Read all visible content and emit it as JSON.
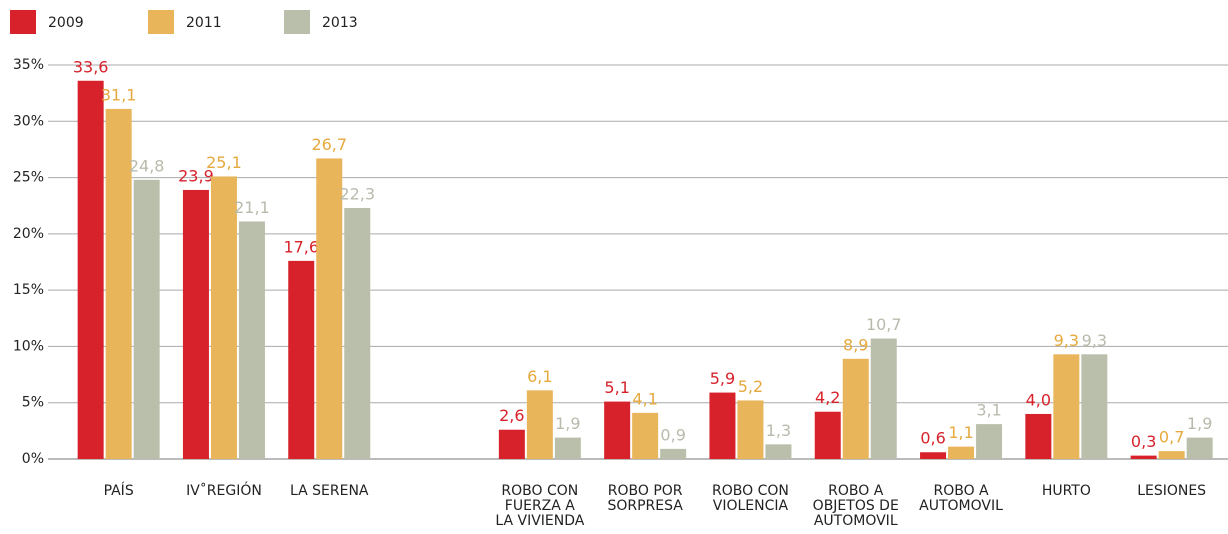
{
  "chart_data": {
    "type": "bar",
    "categories": [
      "PAÍS",
      "IV˚REGIÓN",
      "LA SERENA",
      null,
      "ROBO CON\nFUERZA A\nLA VIVIENDA",
      "ROBO POR\nSORPRESA",
      "ROBO CON\nVIOLENCIA",
      "ROBO A\nOBJETOS DE\nAUTOMOVIL",
      "ROBO A\nAUTOMOVIL",
      "HURTO",
      "LESIONES"
    ],
    "series": [
      {
        "name": "2009",
        "color": "#d7222b",
        "label_color": "#d7222b",
        "values": [
          33.6,
          23.9,
          17.6,
          null,
          2.6,
          5.1,
          5.9,
          4.2,
          0.6,
          4.0,
          0.3
        ],
        "value_labels": [
          "33,6",
          "23,9",
          "17,6",
          null,
          "2,6",
          "5,1",
          "5,9",
          "4,2",
          "0,6",
          "4,0",
          "0,3"
        ]
      },
      {
        "name": "2011",
        "color": "#e8b55a",
        "label_color": "#e6a93d",
        "values": [
          31.1,
          25.1,
          26.7,
          null,
          6.1,
          4.1,
          5.2,
          8.9,
          1.1,
          9.3,
          0.7
        ],
        "value_labels": [
          "31,1",
          "25,1",
          "26,7",
          null,
          "6,1",
          "4,1",
          "5,2",
          "8,9",
          "1,1",
          "9,3",
          "0,7"
        ]
      },
      {
        "name": "2013",
        "color": "#b9bfaa",
        "label_color": "#b8bbac",
        "values": [
          24.8,
          21.1,
          22.3,
          null,
          1.9,
          0.9,
          1.3,
          10.7,
          3.1,
          9.3,
          1.9
        ],
        "value_labels": [
          "24,8",
          "21,1",
          "22,3",
          null,
          "1,9",
          "0,9",
          "1,3",
          "10,7",
          "3,1",
          "9,3",
          "1,9"
        ]
      }
    ],
    "ylim": [
      0,
      35
    ],
    "yticks": [
      {
        "value": 0,
        "label": "0%"
      },
      {
        "value": 5,
        "label": "5%"
      },
      {
        "value": 10,
        "label": "10%"
      },
      {
        "value": 15,
        "label": "15%"
      },
      {
        "value": 20,
        "label": "20%"
      },
      {
        "value": 25,
        "label": "25%"
      },
      {
        "value": 30,
        "label": "30%"
      },
      {
        "value": 35,
        "label": "35%"
      }
    ],
    "grid": true,
    "legend": "top-left"
  }
}
